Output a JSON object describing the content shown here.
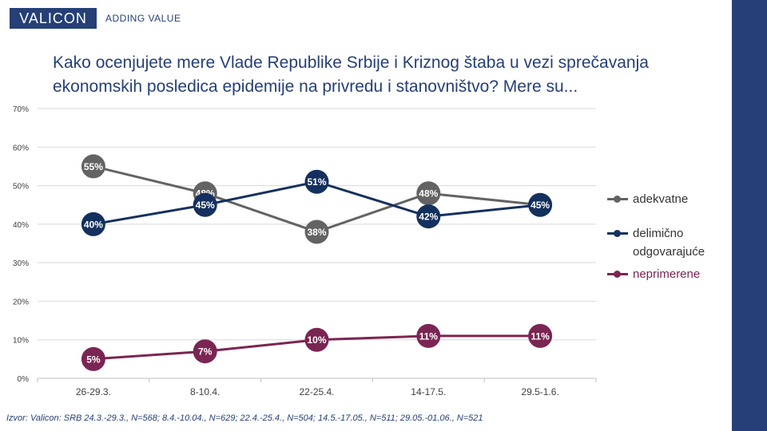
{
  "brand": {
    "logo": "VALICON",
    "tagline": "ADDING VALUE"
  },
  "title": {
    "line1": "Kako ocenjujete mere Vlade Republike Srbije i Kriznog štaba u vezi sprečavanja",
    "line2": "ekonomskih posledica epidemije na privredu i stanovništvo? Mere su..."
  },
  "colors": {
    "brand": "#253f77",
    "adekvatne": "#636363",
    "delimicno": "#14305e",
    "neprimerene": "#7b2553"
  },
  "chart_data": {
    "type": "line",
    "categories": [
      "26-29.3.",
      "8-10.4.",
      "22-25.4.",
      "14-17.5.",
      "29.5-1.6."
    ],
    "y_ticks": [
      "0%",
      "10%",
      "20%",
      "30%",
      "40%",
      "50%",
      "60%",
      "70%"
    ],
    "ylim": [
      0,
      70
    ],
    "grid": true,
    "legend_position": "right",
    "series": [
      {
        "name": "adekvatne",
        "color": "#636363",
        "values": [
          55,
          48,
          38,
          48,
          45
        ],
        "labels": [
          "55%",
          "48%",
          "38%",
          "48%",
          ""
        ]
      },
      {
        "name": "delimično odgovarajuće",
        "color": "#14305e",
        "values": [
          40,
          45,
          51,
          42,
          45
        ],
        "labels": [
          "40%",
          "45%",
          "51%",
          "42%",
          "45%"
        ]
      },
      {
        "name": "neprimerene",
        "color": "#7b2553",
        "values": [
          5,
          7,
          10,
          11,
          11
        ],
        "labels": [
          "5%",
          "7%",
          "10%",
          "11%",
          "11%"
        ]
      }
    ]
  },
  "legend": {
    "adekvatne": "adekvatne",
    "delimicno_line1": "delimično",
    "delimicno_line2": "odgovarajuće",
    "neprimerene": "neprimerene"
  },
  "source": "Izvor: Valicon: SRB 24.3.-29.3., N=568; 8.4.-10.04., N=629; 22.4.-25.4., N=504; 14.5.-17.05., N=511; 29.05.-01.06., N=521"
}
